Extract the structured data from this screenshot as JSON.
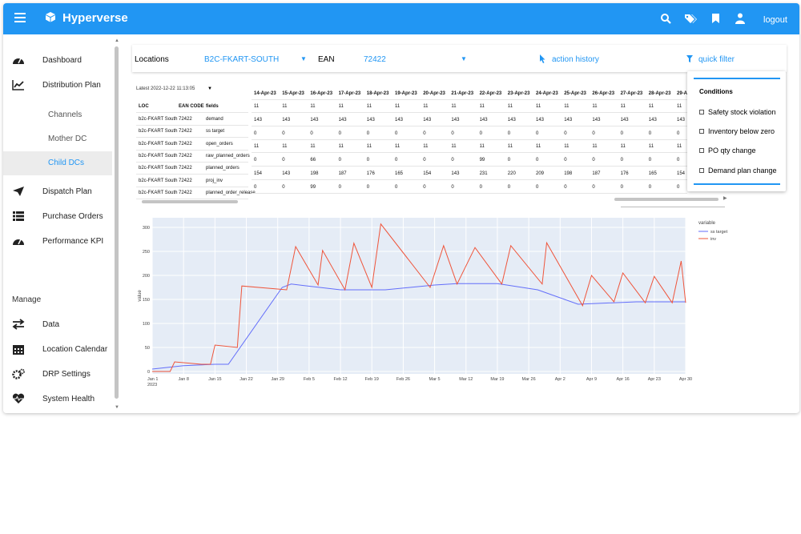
{
  "app": {
    "title": "Hyperverse",
    "logout": "logout",
    "colors": {
      "primary": "#2196f3"
    }
  },
  "topbar_icons": [
    "search-icon",
    "tags-icon",
    "bookmark-icon",
    "user-icon"
  ],
  "sidebar": {
    "items": [
      {
        "label": "Dashboard",
        "icon": "gauge-icon"
      },
      {
        "label": "Distribution Plan",
        "icon": "chart-line-icon"
      },
      {
        "label": "Dispatch Plan",
        "icon": "paper-plane-icon"
      },
      {
        "label": "Purchase Orders",
        "icon": "list-icon"
      },
      {
        "label": "Performance KPI",
        "icon": "gauge-icon"
      }
    ],
    "sub_items": [
      {
        "label": "Channels"
      },
      {
        "label": "Mother DC"
      },
      {
        "label": "Child DCs",
        "active": true
      }
    ],
    "manage_heading": "Manage",
    "manage_items": [
      {
        "label": "Data",
        "icon": "exchange-icon"
      },
      {
        "label": "Location Calendar",
        "icon": "calendar-icon"
      },
      {
        "label": "DRP Settings",
        "icon": "cogs-icon"
      },
      {
        "label": "System Health",
        "icon": "heartbeat-icon"
      }
    ]
  },
  "filters": {
    "locations_label": "Locations",
    "locations_value": "B2C-FKART-SOUTH",
    "ean_label": "EAN",
    "ean_value": "72422",
    "action_history": "action history",
    "quick_filter": "quick filter"
  },
  "latest": "Latest 2022-12-22 11:13:05",
  "table": {
    "left_headers": [
      "LOC",
      "EAN CODE",
      "fields"
    ],
    "left_rows": [
      [
        "b2c-FKART South",
        "72422",
        "demand"
      ],
      [
        "b2c-FKART South",
        "72422",
        "ss target"
      ],
      [
        "b2c-FKART South",
        "72422",
        "open_orders"
      ],
      [
        "b2c-FKART South",
        "72422",
        "raw_planned_orders"
      ],
      [
        "b2c-FKART South",
        "72422",
        "planned_orders"
      ],
      [
        "b2c-FKART South",
        "72422",
        "proj_inv"
      ],
      [
        "b2c-FKART South",
        "72422",
        "planned_order_release"
      ]
    ],
    "date_headers": [
      "14-Apr-23",
      "15-Apr-23",
      "16-Apr-23",
      "17-Apr-23",
      "18-Apr-23",
      "19-Apr-23",
      "20-Apr-23",
      "21-Apr-23",
      "22-Apr-23",
      "23-Apr-23",
      "24-Apr-23",
      "25-Apr-23",
      "26-Apr-23",
      "27-Apr-23",
      "28-Apr-23",
      "29-A"
    ],
    "rows": [
      [
        "11",
        "11",
        "11",
        "11",
        "11",
        "11",
        "11",
        "11",
        "11",
        "11",
        "11",
        "11",
        "11",
        "11",
        "11",
        "11"
      ],
      [
        "143",
        "143",
        "143",
        "143",
        "143",
        "143",
        "143",
        "143",
        "143",
        "143",
        "143",
        "143",
        "143",
        "143",
        "143",
        "143"
      ],
      [
        "0",
        "0",
        "0",
        "0",
        "0",
        "0",
        "0",
        "0",
        "0",
        "0",
        "0",
        "0",
        "0",
        "0",
        "0",
        "0"
      ],
      [
        "11",
        "11",
        "11",
        "11",
        "11",
        "11",
        "11",
        "11",
        "11",
        "11",
        "11",
        "11",
        "11",
        "11",
        "11",
        "11"
      ],
      [
        "0",
        "0",
        "66",
        "0",
        "0",
        "0",
        "0",
        "0",
        "99",
        "0",
        "0",
        "0",
        "0",
        "0",
        "0",
        "0"
      ],
      [
        "154",
        "143",
        "198",
        "187",
        "176",
        "165",
        "154",
        "143",
        "231",
        "220",
        "209",
        "198",
        "187",
        "176",
        "165",
        "154"
      ],
      [
        "0",
        "0",
        "99",
        "0",
        "0",
        "0",
        "0",
        "0",
        "0",
        "0",
        "0",
        "0",
        "0",
        "0",
        "0",
        "0"
      ]
    ]
  },
  "quick_filter_panel": {
    "heading": "Conditions",
    "options": [
      "Safety stock violation",
      "Inventory below zero",
      "PO qty change",
      "Demand plan change"
    ]
  },
  "chart_data": {
    "type": "line",
    "xlabel": "",
    "ylabel": "value",
    "legend_title": "variable",
    "legend_position": "top-right",
    "grid": true,
    "x_ticks": [
      "Jan 1\n2023",
      "Jan 8",
      "Jan 15",
      "Jan 22",
      "Jan 29",
      "Feb 5",
      "Feb 12",
      "Feb 19",
      "Feb 26",
      "Mar 5",
      "Mar 12",
      "Mar 19",
      "Mar 26",
      "Apr 2",
      "Apr 9",
      "Apr 16",
      "Apr 23",
      "Apr 30"
    ],
    "y_ticks": [
      0,
      50,
      100,
      150,
      200,
      250,
      300
    ],
    "ylim": [
      -5,
      320
    ],
    "x_range_days": [
      0,
      119
    ],
    "series": [
      {
        "name": "ss target",
        "color": "#636efa",
        "points": [
          [
            0,
            5
          ],
          [
            7,
            12
          ],
          [
            14,
            15
          ],
          [
            17,
            15
          ],
          [
            29,
            175
          ],
          [
            31,
            182
          ],
          [
            42,
            170
          ],
          [
            52,
            170
          ],
          [
            63,
            180
          ],
          [
            68,
            183
          ],
          [
            77,
            183
          ],
          [
            86,
            170
          ],
          [
            95,
            140
          ],
          [
            108,
            145
          ],
          [
            119,
            145
          ]
        ]
      },
      {
        "name": "inv",
        "color": "#ef553b",
        "points": [
          [
            0,
            0
          ],
          [
            4,
            0
          ],
          [
            5,
            20
          ],
          [
            11,
            15
          ],
          [
            13,
            15
          ],
          [
            14,
            55
          ],
          [
            19,
            50
          ],
          [
            20,
            178
          ],
          [
            30,
            170
          ],
          [
            32,
            260
          ],
          [
            37,
            180
          ],
          [
            38,
            252
          ],
          [
            43,
            170
          ],
          [
            45,
            267
          ],
          [
            49,
            175
          ],
          [
            51,
            307
          ],
          [
            62,
            175
          ],
          [
            65,
            262
          ],
          [
            68,
            182
          ],
          [
            72,
            258
          ],
          [
            78,
            182
          ],
          [
            80,
            262
          ],
          [
            87,
            182
          ],
          [
            88,
            268
          ],
          [
            96,
            137
          ],
          [
            98,
            200
          ],
          [
            103,
            145
          ],
          [
            105,
            205
          ],
          [
            110,
            143
          ],
          [
            112,
            198
          ],
          [
            116,
            143
          ],
          [
            118,
            230
          ],
          [
            119,
            143
          ]
        ]
      }
    ]
  }
}
